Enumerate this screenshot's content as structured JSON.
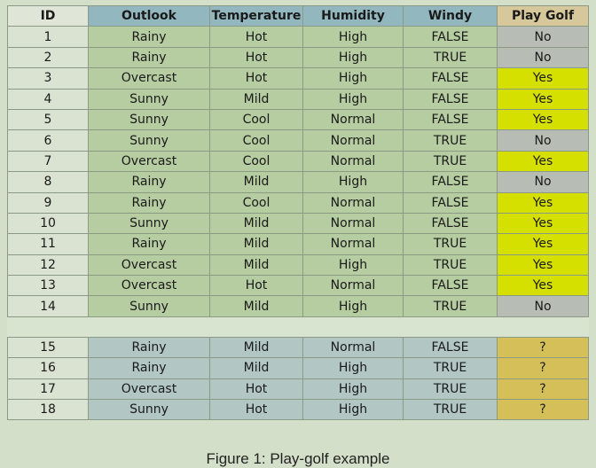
{
  "columns": [
    "ID",
    "Outlook",
    "Temperature",
    "Humidity",
    "Windy",
    "Play Golf"
  ],
  "training_rows": [
    {
      "id": "1",
      "outlook": "Rainy",
      "temperature": "Hot",
      "humidity": "High",
      "windy": "FALSE",
      "play": "No"
    },
    {
      "id": "2",
      "outlook": "Rainy",
      "temperature": "Hot",
      "humidity": "High",
      "windy": "TRUE",
      "play": "No"
    },
    {
      "id": "3",
      "outlook": "Overcast",
      "temperature": "Hot",
      "humidity": "High",
      "windy": "FALSE",
      "play": "Yes"
    },
    {
      "id": "4",
      "outlook": "Sunny",
      "temperature": "Mild",
      "humidity": "High",
      "windy": "FALSE",
      "play": "Yes"
    },
    {
      "id": "5",
      "outlook": "Sunny",
      "temperature": "Cool",
      "humidity": "Normal",
      "windy": "FALSE",
      "play": "Yes"
    },
    {
      "id": "6",
      "outlook": "Sunny",
      "temperature": "Cool",
      "humidity": "Normal",
      "windy": "TRUE",
      "play": "No"
    },
    {
      "id": "7",
      "outlook": "Overcast",
      "temperature": "Cool",
      "humidity": "Normal",
      "windy": "TRUE",
      "play": "Yes"
    },
    {
      "id": "8",
      "outlook": "Rainy",
      "temperature": "Mild",
      "humidity": "High",
      "windy": "FALSE",
      "play": "No"
    },
    {
      "id": "9",
      "outlook": "Rainy",
      "temperature": "Cool",
      "humidity": "Normal",
      "windy": "FALSE",
      "play": "Yes"
    },
    {
      "id": "10",
      "outlook": "Sunny",
      "temperature": "Mild",
      "humidity": "Normal",
      "windy": "FALSE",
      "play": "Yes"
    },
    {
      "id": "11",
      "outlook": "Rainy",
      "temperature": "Mild",
      "humidity": "Normal",
      "windy": "TRUE",
      "play": "Yes"
    },
    {
      "id": "12",
      "outlook": "Overcast",
      "temperature": "Mild",
      "humidity": "High",
      "windy": "TRUE",
      "play": "Yes"
    },
    {
      "id": "13",
      "outlook": "Overcast",
      "temperature": "Hot",
      "humidity": "Normal",
      "windy": "FALSE",
      "play": "Yes"
    },
    {
      "id": "14",
      "outlook": "Sunny",
      "temperature": "Mild",
      "humidity": "High",
      "windy": "TRUE",
      "play": "No"
    }
  ],
  "test_rows": [
    {
      "id": "15",
      "outlook": "Rainy",
      "temperature": "Mild",
      "humidity": "Normal",
      "windy": "FALSE",
      "play": "?"
    },
    {
      "id": "16",
      "outlook": "Rainy",
      "temperature": "Mild",
      "humidity": "High",
      "windy": "TRUE",
      "play": "?"
    },
    {
      "id": "17",
      "outlook": "Overcast",
      "temperature": "Hot",
      "humidity": "High",
      "windy": "TRUE",
      "play": "?"
    },
    {
      "id": "18",
      "outlook": "Sunny",
      "temperature": "Hot",
      "humidity": "High",
      "windy": "TRUE",
      "play": "?"
    }
  ],
  "caption": "Figure 1: Play-golf example",
  "colors": {
    "yes": "#d6e000",
    "no": "#b7bdb4",
    "unknown": "#d4bf58",
    "header_features": "#93b7bf",
    "header_play": "#d6c89a",
    "training_cells": "#b6cca1",
    "test_cells": "#b2c6c4"
  }
}
